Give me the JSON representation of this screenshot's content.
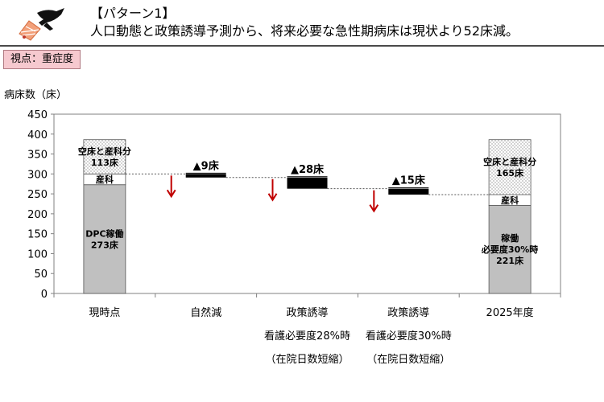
{
  "header": {
    "pattern_label": "【パターン1】",
    "headline": "人口動態と政策誘導予測から、将来必要な急性期病床は現状より52床減。",
    "logo_icon": "runner-flag-logo"
  },
  "viewpoint": {
    "label": "視点：重症度"
  },
  "chart_data": {
    "type": "waterfall-bar",
    "ylabel": "病床数（床）",
    "ylim": [
      0,
      450
    ],
    "yticks": [
      0,
      50,
      100,
      150,
      200,
      250,
      300,
      350,
      400,
      450
    ],
    "categories": [
      {
        "label": "現時点",
        "sub": []
      },
      {
        "label": "自然減",
        "sub": []
      },
      {
        "label": "政策誘導",
        "sub": [
          "看護必要度28%時",
          "（在院日数短縮）"
        ]
      },
      {
        "label": "政策誘導",
        "sub": [
          "看護必要度30%時",
          "（在院日数短縮）"
        ]
      },
      {
        "label": "2025年度",
        "sub": []
      }
    ],
    "stacks": [
      {
        "category_index": 0,
        "segments": [
          {
            "name": "DPC稼働",
            "from": 0,
            "to": 273,
            "style": "gray",
            "labels": [
              "DPC稼働",
              "273床"
            ]
          },
          {
            "name": "産科",
            "from": 273,
            "to": 300,
            "style": "white",
            "labels": [
              "産科"
            ]
          },
          {
            "name": "空床と産科分",
            "from": 300,
            "to": 386,
            "style": "dotted",
            "labels": [
              "空床と産科分",
              "113床"
            ]
          }
        ]
      },
      {
        "category_index": 4,
        "segments": [
          {
            "name": "稼働",
            "from": 0,
            "to": 221,
            "style": "gray",
            "labels": [
              "稼働",
              "必要度30%時",
              "221床"
            ]
          },
          {
            "name": "産科",
            "from": 221,
            "to": 248,
            "style": "white",
            "labels": [
              "産科"
            ]
          },
          {
            "name": "空床と産科分",
            "from": 248,
            "to": 386,
            "style": "dotted",
            "labels": [
              "空床と産科分",
              "165床"
            ]
          }
        ]
      }
    ],
    "decrements": [
      {
        "category_index": 1,
        "from": 300,
        "to": 291,
        "label": "▲9床"
      },
      {
        "category_index": 2,
        "from": 291,
        "to": 263,
        "label": "▲28床"
      },
      {
        "category_index": 3,
        "from": 263,
        "to": 248,
        "label": "▲15床"
      }
    ],
    "colors": {
      "gray": "#c0c0c0",
      "bar_black": "#000000",
      "arrow_red": "#c00000",
      "axis": "#808080"
    }
  }
}
